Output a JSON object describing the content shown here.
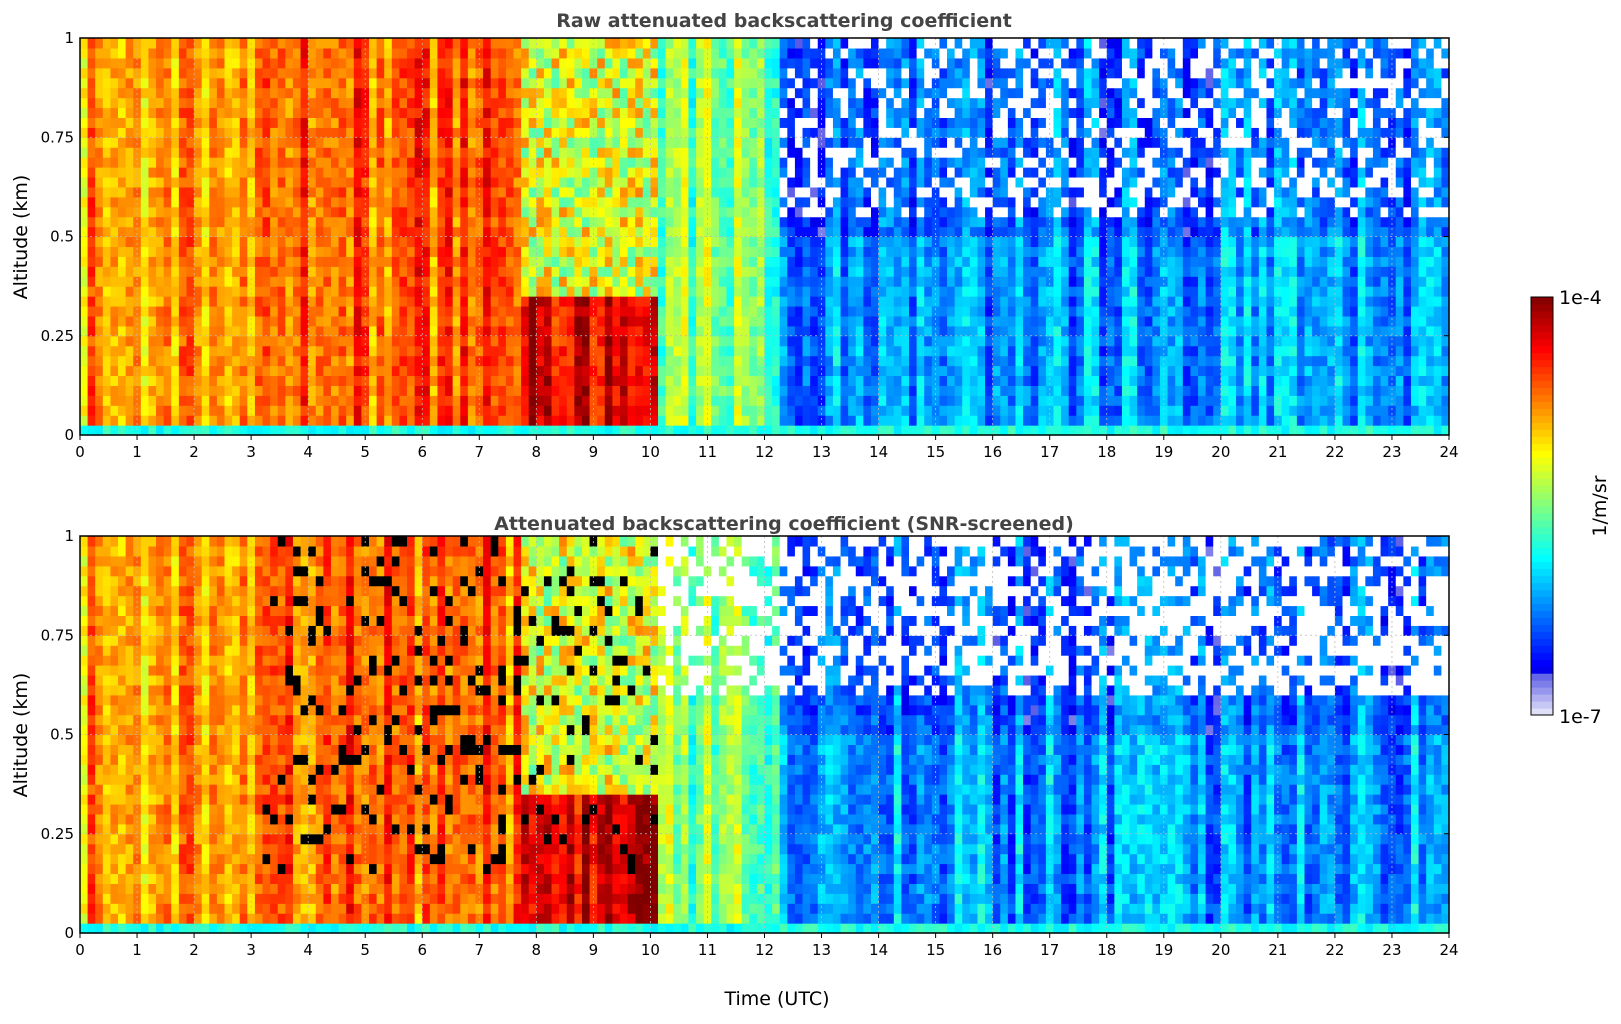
{
  "chart_data": [
    {
      "type": "heatmap",
      "title": "Raw attenuated backscattering coefficient",
      "xlabel": "",
      "ylabel": "Altitude (km)",
      "xlim": [
        0,
        24
      ],
      "ylim": [
        0,
        1
      ],
      "xticks": [
        "0",
        "1",
        "2",
        "3",
        "4",
        "5",
        "6",
        "7",
        "8",
        "9",
        "10",
        "11",
        "12",
        "13",
        "14",
        "15",
        "16",
        "17",
        "18",
        "19",
        "20",
        "21",
        "22",
        "23",
        "24"
      ],
      "yticks": [
        "0",
        "0.25",
        "0.5",
        "0.75",
        "1"
      ],
      "grid": true,
      "screened": false,
      "regions": [
        {
          "t": [
            0,
            3.2
          ],
          "desc": "orange/yellow boundary layer aerosol",
          "level": 0.72
        },
        {
          "t": [
            3.2,
            7.7
          ],
          "desc": "orange/dark red layers up to 1 km",
          "level": 0.78
        },
        {
          "t": [
            7.7,
            10.2
          ],
          "desc": "strong red layer below 0.35 km",
          "level": 0.92
        },
        {
          "t": [
            10.2,
            12.3
          ],
          "desc": "cyan/green with dark red filaments",
          "level": 0.5
        },
        {
          "t": [
            12.3,
            24
          ],
          "desc": "blue/cyan low signal, noisy above 0.5 km",
          "level": 0.28
        }
      ]
    },
    {
      "type": "heatmap",
      "title": "Attenuated backscattering coefficient (SNR-screened)",
      "xlabel": "Time (UTC)",
      "ylabel": "Altitude (km)",
      "xlim": [
        0,
        24
      ],
      "ylim": [
        0,
        1
      ],
      "xticks": [
        "0",
        "1",
        "2",
        "3",
        "4",
        "5",
        "6",
        "7",
        "8",
        "9",
        "10",
        "11",
        "12",
        "13",
        "14",
        "15",
        "16",
        "17",
        "18",
        "19",
        "20",
        "21",
        "22",
        "23",
        "24"
      ],
      "yticks": [
        "0",
        "0.25",
        "0.5",
        "0.75",
        "1"
      ],
      "grid": true,
      "screened": true,
      "regions": [
        {
          "t": [
            0,
            3.2
          ],
          "desc": "orange/yellow boundary layer aerosol",
          "level": 0.72
        },
        {
          "t": [
            3.2,
            7.7
          ],
          "desc": "orange with black-masked filaments",
          "level": 0.78
        },
        {
          "t": [
            7.7,
            10.2
          ],
          "desc": "strong red layer, black above 0.1 km",
          "level": 0.92
        },
        {
          "t": [
            10.2,
            12.3
          ],
          "desc": "cyan/green, white above 0.6 km",
          "level": 0.5
        },
        {
          "t": [
            12.3,
            24
          ],
          "desc": "blue/cyan, white screened regions above 0.5 km",
          "level": 0.28
        }
      ]
    }
  ],
  "colorbar": {
    "label": "1/m/sr",
    "max_label": "1e-4",
    "min_label": "1e-7",
    "min": 1e-07,
    "max": 0.0001,
    "scale": "log",
    "colormap": "jet"
  }
}
